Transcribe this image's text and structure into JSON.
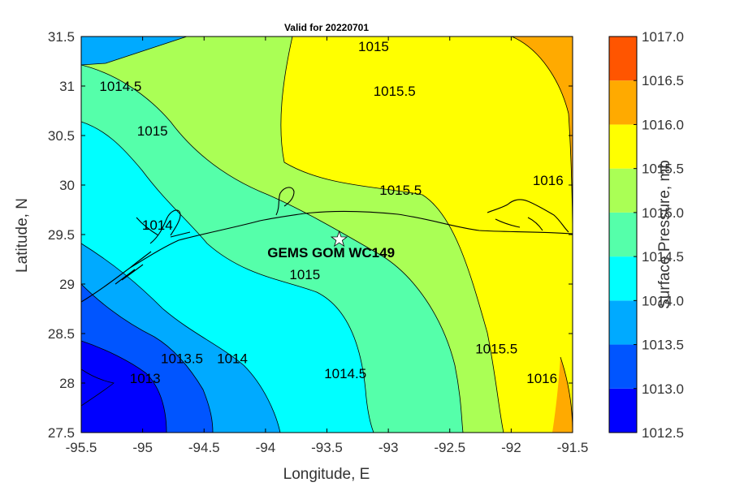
{
  "chart_data": {
    "type": "contour",
    "title": "Valid for 20220701",
    "xlabel": "Longitude, E",
    "ylabel": "Latitude, N",
    "xlim": [
      -95.5,
      -91.5
    ],
    "ylim": [
      27.5,
      31.5
    ],
    "x_ticks": [
      "-95.5",
      "-95",
      "-94.5",
      "-94",
      "-93.5",
      "-93",
      "-92.5",
      "-92",
      "-91.5"
    ],
    "y_ticks": [
      "27.5",
      "28",
      "28.5",
      "29",
      "29.5",
      "30",
      "30.5",
      "31",
      "31.5"
    ],
    "colorbar": {
      "label": "Surface Pressure, mb",
      "ticks": [
        "1017.0",
        "1016.5",
        "1016.0",
        "1015.5",
        "1015.0",
        "1014.5",
        "1014.0",
        "1013.5",
        "1013.0",
        "1012.5"
      ],
      "levels": [
        1012.5,
        1013.0,
        1013.5,
        1014.0,
        1014.5,
        1015.0,
        1015.5,
        1016.0,
        1016.5,
        1017.0
      ],
      "colors": [
        "#0000ff",
        "#0055ff",
        "#00aaff",
        "#00ffff",
        "#55ffaa",
        "#aaff55",
        "#ffff00",
        "#ffaa00",
        "#ff5500"
      ]
    },
    "contour_labels": [
      {
        "text": "1015",
        "lon": -93.12,
        "lat": 31.4
      },
      {
        "text": "1014.5",
        "lon": -95.18,
        "lat": 31.0
      },
      {
        "text": "1015.5",
        "lon": -92.95,
        "lat": 30.95
      },
      {
        "text": "1015",
        "lon": -94.92,
        "lat": 30.55
      },
      {
        "text": "1015.5",
        "lon": -92.9,
        "lat": 29.95
      },
      {
        "text": "1016",
        "lon": -91.7,
        "lat": 30.05
      },
      {
        "text": "1014",
        "lon": -94.88,
        "lat": 29.6
      },
      {
        "text": "1015",
        "lon": -93.68,
        "lat": 29.1
      },
      {
        "text": "1013.5",
        "lon": -94.68,
        "lat": 28.25
      },
      {
        "text": "1014",
        "lon": -94.27,
        "lat": 28.25
      },
      {
        "text": "1014.5",
        "lon": -93.35,
        "lat": 28.1
      },
      {
        "text": "1015.5",
        "lon": -92.12,
        "lat": 28.35
      },
      {
        "text": "1013",
        "lon": -94.98,
        "lat": 28.05
      },
      {
        "text": "1016",
        "lon": -91.75,
        "lat": 28.05
      }
    ],
    "station": {
      "name": "GEMS GOM WC149",
      "lon": -93.4,
      "lat": 29.45
    }
  }
}
